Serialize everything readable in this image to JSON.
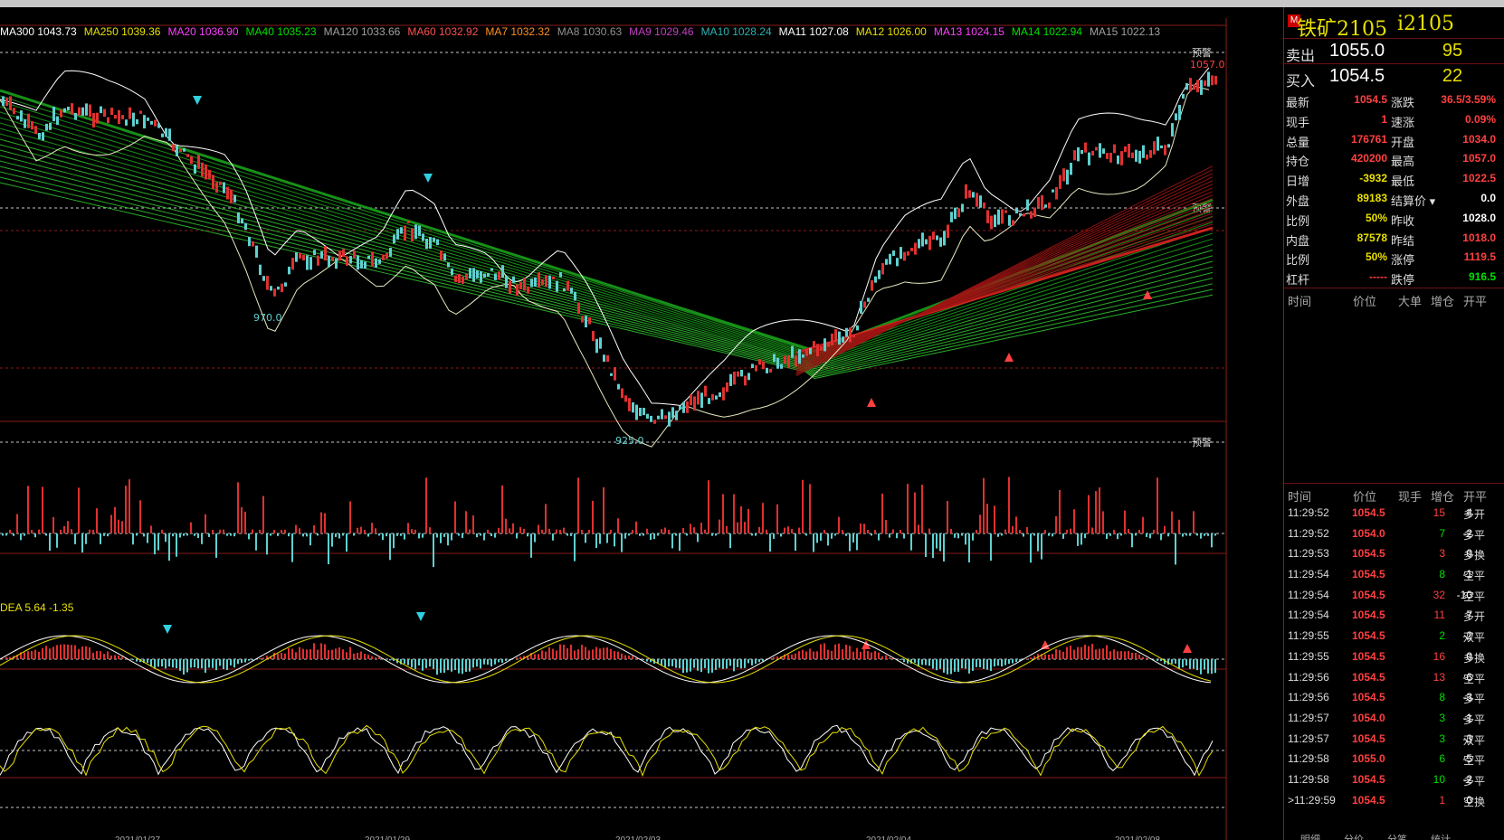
{
  "ma_header": [
    {
      "text": "MA300 1043.73",
      "color": "#ffffff"
    },
    {
      "text": "MA250 1039.36",
      "color": "#e8e000"
    },
    {
      "text": "MA20 1036.90",
      "color": "#ff40ff"
    },
    {
      "text": "MA40 1035.23",
      "color": "#00e000"
    },
    {
      "text": "MA120 1033.66",
      "color": "#a0a0a0"
    },
    {
      "text": "MA60 1032.92",
      "color": "#ff5050"
    },
    {
      "text": "MA7 1032.32",
      "color": "#ff9020"
    },
    {
      "text": "MA8 1030.63",
      "color": "#909090"
    },
    {
      "text": "MA9 1029.46",
      "color": "#c040c0"
    },
    {
      "text": "MA10 1028.24",
      "color": "#30b0b0"
    },
    {
      "text": "MA11 1027.08",
      "color": "#ffffff"
    },
    {
      "text": "MA12 1026.00",
      "color": "#e8e000"
    },
    {
      "text": "MA13 1024.15",
      "color": "#ff40ff"
    },
    {
      "text": "MA14 1022.94",
      "color": "#00e000"
    },
    {
      "text": "MA15 1022.13",
      "color": "#a0a0a0"
    }
  ],
  "chart": {
    "low1_label": "970.0",
    "low2_label": "925.0",
    "high_label": "1057.0",
    "alert_label": "预警",
    "macd_header": "DEA 5.64  -1.35",
    "date_labels": [
      "2021/01/27",
      "2021/01/29",
      "2021/02/03",
      "2021/02/04",
      "2021/02/08"
    ]
  },
  "panel": {
    "title_tag": "M",
    "title": "铁矿2105",
    "code": "i2105",
    "ask": {
      "label": "卖出",
      "price": "1055.0",
      "vol": "95"
    },
    "bid": {
      "label": "买入",
      "price": "1054.5",
      "vol": "22"
    },
    "stats": [
      {
        "l1": "最新",
        "v1": "1054.5",
        "l2": "涨跌",
        "v2": "36.5/3.59%"
      },
      {
        "l1": "现手",
        "v1": "1",
        "l2": "速涨",
        "v2": "0.09%"
      },
      {
        "l1": "总量",
        "v1": "176761",
        "l2": "开盘",
        "v2": "1034.0"
      },
      {
        "l1": "持仓",
        "v1": "420200",
        "l2": "最高",
        "v2": "1057.0"
      },
      {
        "l1": "日增",
        "v1": "-3932",
        "l2": "最低",
        "v2": "1022.5"
      },
      {
        "l1": "外盘",
        "v1": "89183",
        "l2": "结算价",
        "v2": "0.0"
      },
      {
        "l1": "比例",
        "v1": "50%",
        "l2": "昨收",
        "v2": "1028.0"
      },
      {
        "l1": "内盘",
        "v1": "87578",
        "l2": "昨结",
        "v2": "1018.0"
      },
      {
        "l1": "比例",
        "v1": "50%",
        "l2": "涨停",
        "v2": "1119.5"
      },
      {
        "l1": "杠杆",
        "v1": "-----",
        "l2": "跌停",
        "v2": "916.5"
      }
    ],
    "hdr_top": [
      "时间",
      "价位",
      "大单",
      "增仓",
      "开平"
    ],
    "hdr_ticks": [
      "时间",
      "价位",
      "现手",
      "增仓",
      "开平"
    ],
    "ticks": [
      {
        "time": "11:29:52",
        "price": "1054.5",
        "hand": "15",
        "inc": "4",
        "type": "多开"
      },
      {
        "time": "11:29:52",
        "price": "1054.0",
        "hand": "7",
        "inc": "-2",
        "type": "多平"
      },
      {
        "time": "11:29:53",
        "price": "1054.5",
        "hand": "3",
        "inc": "0",
        "type": "多换"
      },
      {
        "time": "11:29:54",
        "price": "1054.5",
        "hand": "8",
        "inc": "-1",
        "type": "空平"
      },
      {
        "time": "11:29:54",
        "price": "1054.5",
        "hand": "32",
        "inc": "-10",
        "type": "空平"
      },
      {
        "time": "11:29:54",
        "price": "1054.5",
        "hand": "11",
        "inc": "7",
        "type": "多开"
      },
      {
        "time": "11:29:55",
        "price": "1054.5",
        "hand": "2",
        "inc": "-2",
        "type": "双平"
      },
      {
        "time": "11:29:55",
        "price": "1054.5",
        "hand": "16",
        "inc": "0",
        "type": "多换"
      },
      {
        "time": "11:29:56",
        "price": "1054.5",
        "hand": "13",
        "inc": "-6",
        "type": "空平"
      },
      {
        "time": "11:29:56",
        "price": "1054.5",
        "hand": "8",
        "inc": "-3",
        "type": "多平"
      },
      {
        "time": "11:29:57",
        "price": "1054.0",
        "hand": "3",
        "inc": "-1",
        "type": "多平"
      },
      {
        "time": "11:29:57",
        "price": "1054.5",
        "hand": "3",
        "inc": "-3",
        "type": "双平"
      },
      {
        "time": "11:29:58",
        "price": "1055.0",
        "hand": "6",
        "inc": "-5",
        "type": "空平"
      },
      {
        "time": "11:29:58",
        "price": "1054.5",
        "hand": "10",
        "inc": "-2",
        "type": "多平"
      },
      {
        "time": "11:29:59",
        "price": "1054.5",
        "hand": "1",
        "inc": "0",
        "type": "空换"
      }
    ],
    "bottom_tabs": [
      "明细",
      "分价",
      "分笔",
      "统计"
    ]
  }
}
